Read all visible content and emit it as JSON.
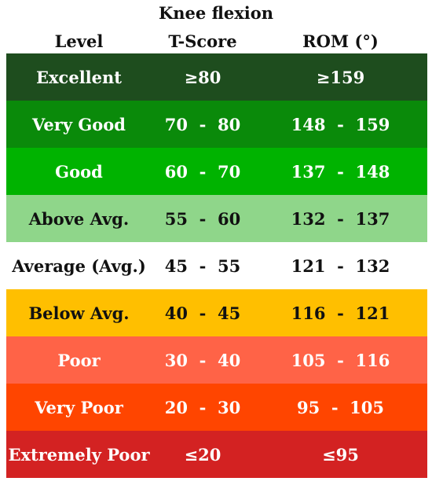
{
  "title": "Knee flexion",
  "headers": {
    "level": "Level",
    "tscore": "T-Score",
    "rom": "ROM (°)"
  },
  "rows": [
    {
      "level": "Excellent",
      "tscore": "≥80",
      "rom": "≥159",
      "bg": "#1e4d1e",
      "color": "#ffffff"
    },
    {
      "level": "Very Good",
      "tscore": "70  -  80",
      "rom": "148  -  159",
      "bg": "#0a8a0a",
      "color": "#ffffff"
    },
    {
      "level": "Good",
      "tscore": "60  -  70",
      "rom": "137  -  148",
      "bg": "#00b300",
      "color": "#ffffff"
    },
    {
      "level": "Above Avg.",
      "tscore": "55  -  60",
      "rom": "132  -  137",
      "bg": "#8fd68a",
      "color": "#111111"
    },
    {
      "level": "Average (Avg.)",
      "tscore": "45  -  55",
      "rom": "121  -  132",
      "bg": "#ffffff",
      "color": "#111111"
    },
    {
      "level": "Below Avg.",
      "tscore": "40  -  45",
      "rom": "116  -  121",
      "bg": "#ffbf00",
      "color": "#111111"
    },
    {
      "level": "Poor",
      "tscore": "30  -  40",
      "rom": "105  -  116",
      "bg": "#ff6347",
      "color": "#ffffff"
    },
    {
      "level": "Very Poor",
      "tscore": "20  -  30",
      "rom": "95  -  105",
      "bg": "#ff4500",
      "color": "#ffffff"
    },
    {
      "level": "Extremely Poor",
      "tscore": "≤20",
      "rom": "≤95",
      "bg": "#d32222",
      "color": "#ffffff"
    }
  ]
}
